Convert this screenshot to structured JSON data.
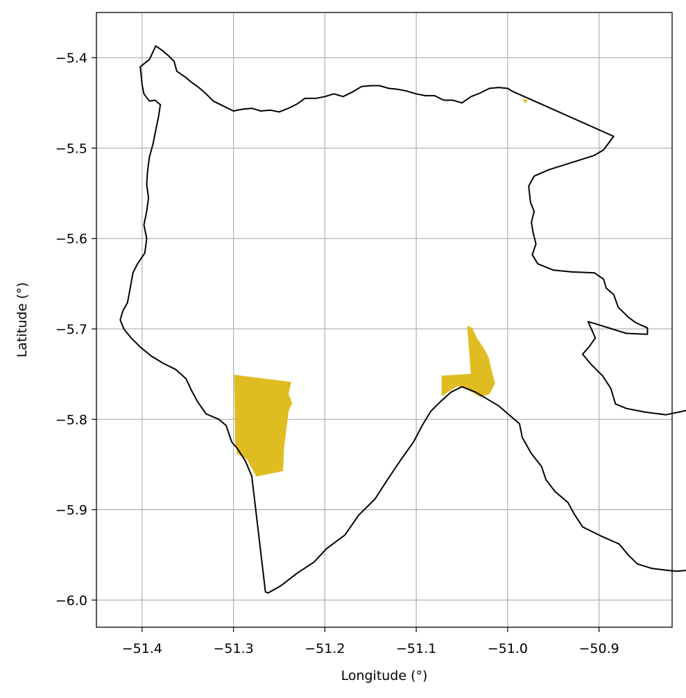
{
  "chart_data": {
    "type": "map",
    "xlabel": "Longitude (°)",
    "ylabel": "Latitude (°)",
    "xlim": [
      -51.45,
      -50.82
    ],
    "ylim": [
      -6.03,
      -5.35
    ],
    "grid": true,
    "xticks": [
      -51.4,
      -51.3,
      -51.2,
      -51.1,
      -51.0,
      -50.9
    ],
    "yticks": [
      -5.4,
      -5.5,
      -5.6,
      -5.7,
      -5.8,
      -5.9,
      -6.0
    ],
    "xtick_labels": [
      "−51.4",
      "−51.3",
      "−51.2",
      "−51.1",
      "−51.0",
      "−50.9"
    ],
    "ytick_labels": [
      "−5.4",
      "−5.5",
      "−5.6",
      "−5.7",
      "−5.8",
      "−5.9",
      "−6.0"
    ],
    "boundary": {
      "stroke": "#000000",
      "coords": [
        [
          -51.402,
          -5.41
        ],
        [
          -51.392,
          -5.402
        ],
        [
          -51.385,
          -5.387
        ],
        [
          -51.378,
          -5.392
        ],
        [
          -51.371,
          -5.398
        ],
        [
          -51.365,
          -5.404
        ],
        [
          -51.362,
          -5.415
        ],
        [
          -51.352,
          -5.422
        ],
        [
          -51.345,
          -5.428
        ],
        [
          -51.338,
          -5.433
        ],
        [
          -51.33,
          -5.44
        ],
        [
          -51.322,
          -5.448
        ],
        [
          -51.312,
          -5.453
        ],
        [
          -51.3,
          -5.459
        ],
        [
          -51.29,
          -5.457
        ],
        [
          -51.28,
          -5.456
        ],
        [
          -51.27,
          -5.459
        ],
        [
          -51.26,
          -5.458
        ],
        [
          -51.25,
          -5.46
        ],
        [
          -51.24,
          -5.456
        ],
        [
          -51.23,
          -5.451
        ],
        [
          -51.222,
          -5.445
        ],
        [
          -51.21,
          -5.445
        ],
        [
          -51.2,
          -5.443
        ],
        [
          -51.19,
          -5.44
        ],
        [
          -51.18,
          -5.443
        ],
        [
          -51.17,
          -5.438
        ],
        [
          -51.16,
          -5.432
        ],
        [
          -51.15,
          -5.431
        ],
        [
          -51.14,
          -5.431
        ],
        [
          -51.13,
          -5.434
        ],
        [
          -51.12,
          -5.435
        ],
        [
          -51.11,
          -5.437
        ],
        [
          -51.1,
          -5.44
        ],
        [
          -51.09,
          -5.442
        ],
        [
          -51.08,
          -5.442
        ],
        [
          -51.07,
          -5.447
        ],
        [
          -51.06,
          -5.447
        ],
        [
          -51.05,
          -5.45
        ],
        [
          -51.04,
          -5.443
        ],
        [
          -51.03,
          -5.439
        ],
        [
          -51.02,
          -5.434
        ],
        [
          -51.01,
          -5.433
        ],
        [
          -51.0,
          -5.434
        ],
        [
          -50.995,
          -5.437
        ],
        [
          -50.884,
          -5.487
        ],
        [
          -50.895,
          -5.502
        ],
        [
          -50.905,
          -5.508
        ],
        [
          -50.93,
          -5.516
        ],
        [
          -50.955,
          -5.524
        ],
        [
          -50.971,
          -5.531
        ],
        [
          -50.977,
          -5.542
        ],
        [
          -50.975,
          -5.56
        ],
        [
          -50.971,
          -5.57
        ],
        [
          -50.974,
          -5.582
        ],
        [
          -50.972,
          -5.594
        ],
        [
          -50.969,
          -5.606
        ],
        [
          -50.973,
          -5.618
        ],
        [
          -50.967,
          -5.628
        ],
        [
          -50.95,
          -5.635
        ],
        [
          -50.93,
          -5.637
        ],
        [
          -50.905,
          -5.638
        ],
        [
          -50.895,
          -5.645
        ],
        [
          -50.892,
          -5.655
        ],
        [
          -50.884,
          -5.662
        ],
        [
          -50.879,
          -5.676
        ],
        [
          -50.868,
          -5.687
        ],
        [
          -50.86,
          -5.693
        ],
        [
          -50.847,
          -5.699
        ],
        [
          -50.847,
          -5.706
        ],
        [
          -50.87,
          -5.705
        ],
        [
          -50.886,
          -5.7
        ],
        [
          -50.905,
          -5.694
        ],
        [
          -50.912,
          -5.692
        ],
        [
          -50.908,
          -5.701
        ],
        [
          -50.904,
          -5.71
        ],
        [
          -50.911,
          -5.72
        ],
        [
          -50.918,
          -5.728
        ],
        [
          -50.908,
          -5.74
        ],
        [
          -50.896,
          -5.752
        ],
        [
          -50.887,
          -5.766
        ],
        [
          -50.882,
          -5.783
        ],
        [
          -50.87,
          -5.788
        ],
        [
          -50.85,
          -5.792
        ],
        [
          -50.827,
          -5.795
        ],
        [
          -50.808,
          -5.791
        ],
        [
          -50.793,
          -5.787
        ],
        [
          -50.778,
          -5.784
        ],
        [
          -50.76,
          -5.779
        ],
        [
          -50.742,
          -5.777
        ],
        [
          -50.721,
          -5.78
        ],
        [
          -50.7,
          -5.781
        ],
        [
          -50.68,
          -5.779
        ],
        [
          -50.66,
          -5.77
        ],
        [
          -50.65,
          -5.772
        ],
        [
          -50.64,
          -5.762
        ],
        [
          -50.63,
          -5.769
        ],
        [
          -50.622,
          -5.768
        ],
        [
          -50.62,
          -5.775
        ],
        [
          -50.631,
          -5.787
        ],
        [
          -50.643,
          -5.795
        ],
        [
          -50.652,
          -5.805
        ],
        [
          -50.661,
          -5.82
        ],
        [
          -50.666,
          -5.84
        ],
        [
          -50.669,
          -5.855
        ],
        [
          -50.672,
          -5.871
        ],
        [
          -50.668,
          -5.884
        ],
        [
          -50.67,
          -5.9
        ],
        [
          -50.674,
          -5.916
        ],
        [
          -50.679,
          -5.924
        ],
        [
          -50.683,
          -5.935
        ],
        [
          -50.689,
          -5.945
        ],
        [
          -50.7,
          -5.96
        ],
        [
          -50.712,
          -5.969
        ],
        [
          -50.725,
          -5.977
        ],
        [
          -50.74,
          -5.986
        ],
        [
          -50.755,
          -5.994
        ],
        [
          -50.762,
          -5.998
        ],
        [
          -50.771,
          -5.995
        ],
        [
          -50.78,
          -5.992
        ],
        [
          -50.786,
          -5.988
        ],
        [
          -50.781,
          -5.983
        ],
        [
          -50.786,
          -5.977
        ],
        [
          -50.795,
          -5.975
        ],
        [
          -50.802,
          -5.967
        ],
        [
          -50.815,
          -5.968
        ],
        [
          -50.826,
          -5.967
        ],
        [
          -50.842,
          -5.965
        ],
        [
          -50.858,
          -5.96
        ],
        [
          -50.868,
          -5.95
        ],
        [
          -50.878,
          -5.938
        ],
        [
          -50.898,
          -5.929
        ],
        [
          -50.918,
          -5.919
        ],
        [
          -50.927,
          -5.905
        ],
        [
          -50.934,
          -5.892
        ],
        [
          -50.948,
          -5.88
        ],
        [
          -50.958,
          -5.867
        ],
        [
          -50.963,
          -5.852
        ],
        [
          -50.974,
          -5.838
        ],
        [
          -50.984,
          -5.82
        ],
        [
          -50.987,
          -5.805
        ],
        [
          -51.01,
          -5.785
        ],
        [
          -51.035,
          -5.77
        ],
        [
          -51.05,
          -5.764
        ],
        [
          -51.062,
          -5.77
        ],
        [
          -51.073,
          -5.78
        ],
        [
          -51.084,
          -5.791
        ],
        [
          -51.093,
          -5.806
        ],
        [
          -51.103,
          -5.825
        ],
        [
          -51.117,
          -5.845
        ],
        [
          -51.131,
          -5.866
        ],
        [
          -51.145,
          -5.888
        ],
        [
          -51.163,
          -5.906
        ],
        [
          -51.178,
          -5.928
        ],
        [
          -51.198,
          -5.943
        ],
        [
          -51.212,
          -5.958
        ],
        [
          -51.23,
          -5.97
        ],
        [
          -51.248,
          -5.984
        ],
        [
          -51.262,
          -5.992
        ],
        [
          -51.265,
          -5.991
        ],
        [
          -51.28,
          -5.863
        ],
        [
          -51.287,
          -5.846
        ],
        [
          -51.296,
          -5.832
        ],
        [
          -51.302,
          -5.825
        ],
        [
          -51.308,
          -5.807
        ],
        [
          -51.316,
          -5.8
        ],
        [
          -51.33,
          -5.794
        ],
        [
          -51.339,
          -5.781
        ],
        [
          -51.346,
          -5.768
        ],
        [
          -51.352,
          -5.755
        ],
        [
          -51.363,
          -5.745
        ],
        [
          -51.377,
          -5.738
        ],
        [
          -51.39,
          -5.73
        ],
        [
          -51.402,
          -5.72
        ],
        [
          -51.412,
          -5.71
        ],
        [
          -51.42,
          -5.7
        ],
        [
          -51.424,
          -5.69
        ],
        [
          -51.421,
          -5.68
        ],
        [
          -51.416,
          -5.671
        ],
        [
          -51.413,
          -5.655
        ],
        [
          -51.41,
          -5.638
        ],
        [
          -51.405,
          -5.628
        ],
        [
          -51.397,
          -5.616
        ],
        [
          -51.395,
          -5.6
        ],
        [
          -51.398,
          -5.585
        ],
        [
          -51.395,
          -5.57
        ],
        [
          -51.393,
          -5.555
        ],
        [
          -51.395,
          -5.54
        ],
        [
          -51.394,
          -5.525
        ],
        [
          -51.392,
          -5.51
        ],
        [
          -51.388,
          -5.495
        ],
        [
          -51.385,
          -5.48
        ],
        [
          -51.382,
          -5.465
        ],
        [
          -51.38,
          -5.452
        ],
        [
          -51.386,
          -5.447
        ],
        [
          -51.392,
          -5.448
        ],
        [
          -51.398,
          -5.44
        ],
        [
          -51.4,
          -5.43
        ],
        [
          -51.401,
          -5.42
        ],
        [
          -51.402,
          -5.41
        ]
      ]
    },
    "regions": [
      {
        "fill": "#dfbd22",
        "coords": [
          [
            -51.299,
            -5.751
          ],
          [
            -51.237,
            -5.759
          ],
          [
            -51.24,
            -5.772
          ],
          [
            -51.236,
            -5.782
          ],
          [
            -51.24,
            -5.791
          ],
          [
            -51.242,
            -5.808
          ],
          [
            -51.298,
            -5.811
          ]
        ]
      },
      {
        "fill": "#dfbd22",
        "coords": [
          [
            -51.298,
            -5.811
          ],
          [
            -51.242,
            -5.808
          ],
          [
            -51.245,
            -5.832
          ],
          [
            -51.285,
            -5.844
          ],
          [
            -51.296,
            -5.838
          ],
          [
            -51.298,
            -5.825
          ]
        ]
      },
      {
        "fill": "#dfbd22",
        "coords": [
          [
            -51.285,
            -5.844
          ],
          [
            -51.245,
            -5.832
          ],
          [
            -51.246,
            -5.857
          ],
          [
            -51.275,
            -5.863
          ]
        ]
      },
      {
        "fill": "#dfbd22",
        "coords": [
          [
            -51.044,
            -5.697
          ],
          [
            -51.039,
            -5.699
          ],
          [
            -51.034,
            -5.71
          ],
          [
            -51.026,
            -5.722
          ],
          [
            -51.021,
            -5.732
          ],
          [
            -51.018,
            -5.745
          ],
          [
            -51.014,
            -5.76
          ],
          [
            -51.02,
            -5.772
          ],
          [
            -51.03,
            -5.775
          ],
          [
            -51.045,
            -5.766
          ],
          [
            -51.055,
            -5.763
          ],
          [
            -51.072,
            -5.774
          ],
          [
            -51.072,
            -5.752
          ],
          [
            -51.04,
            -5.75
          ]
        ]
      },
      {
        "fill": "#dfbd22",
        "coords": [
          [
            -50.983,
            -5.446
          ],
          [
            -50.978,
            -5.447
          ],
          [
            -50.981,
            -5.45
          ]
        ]
      }
    ]
  }
}
